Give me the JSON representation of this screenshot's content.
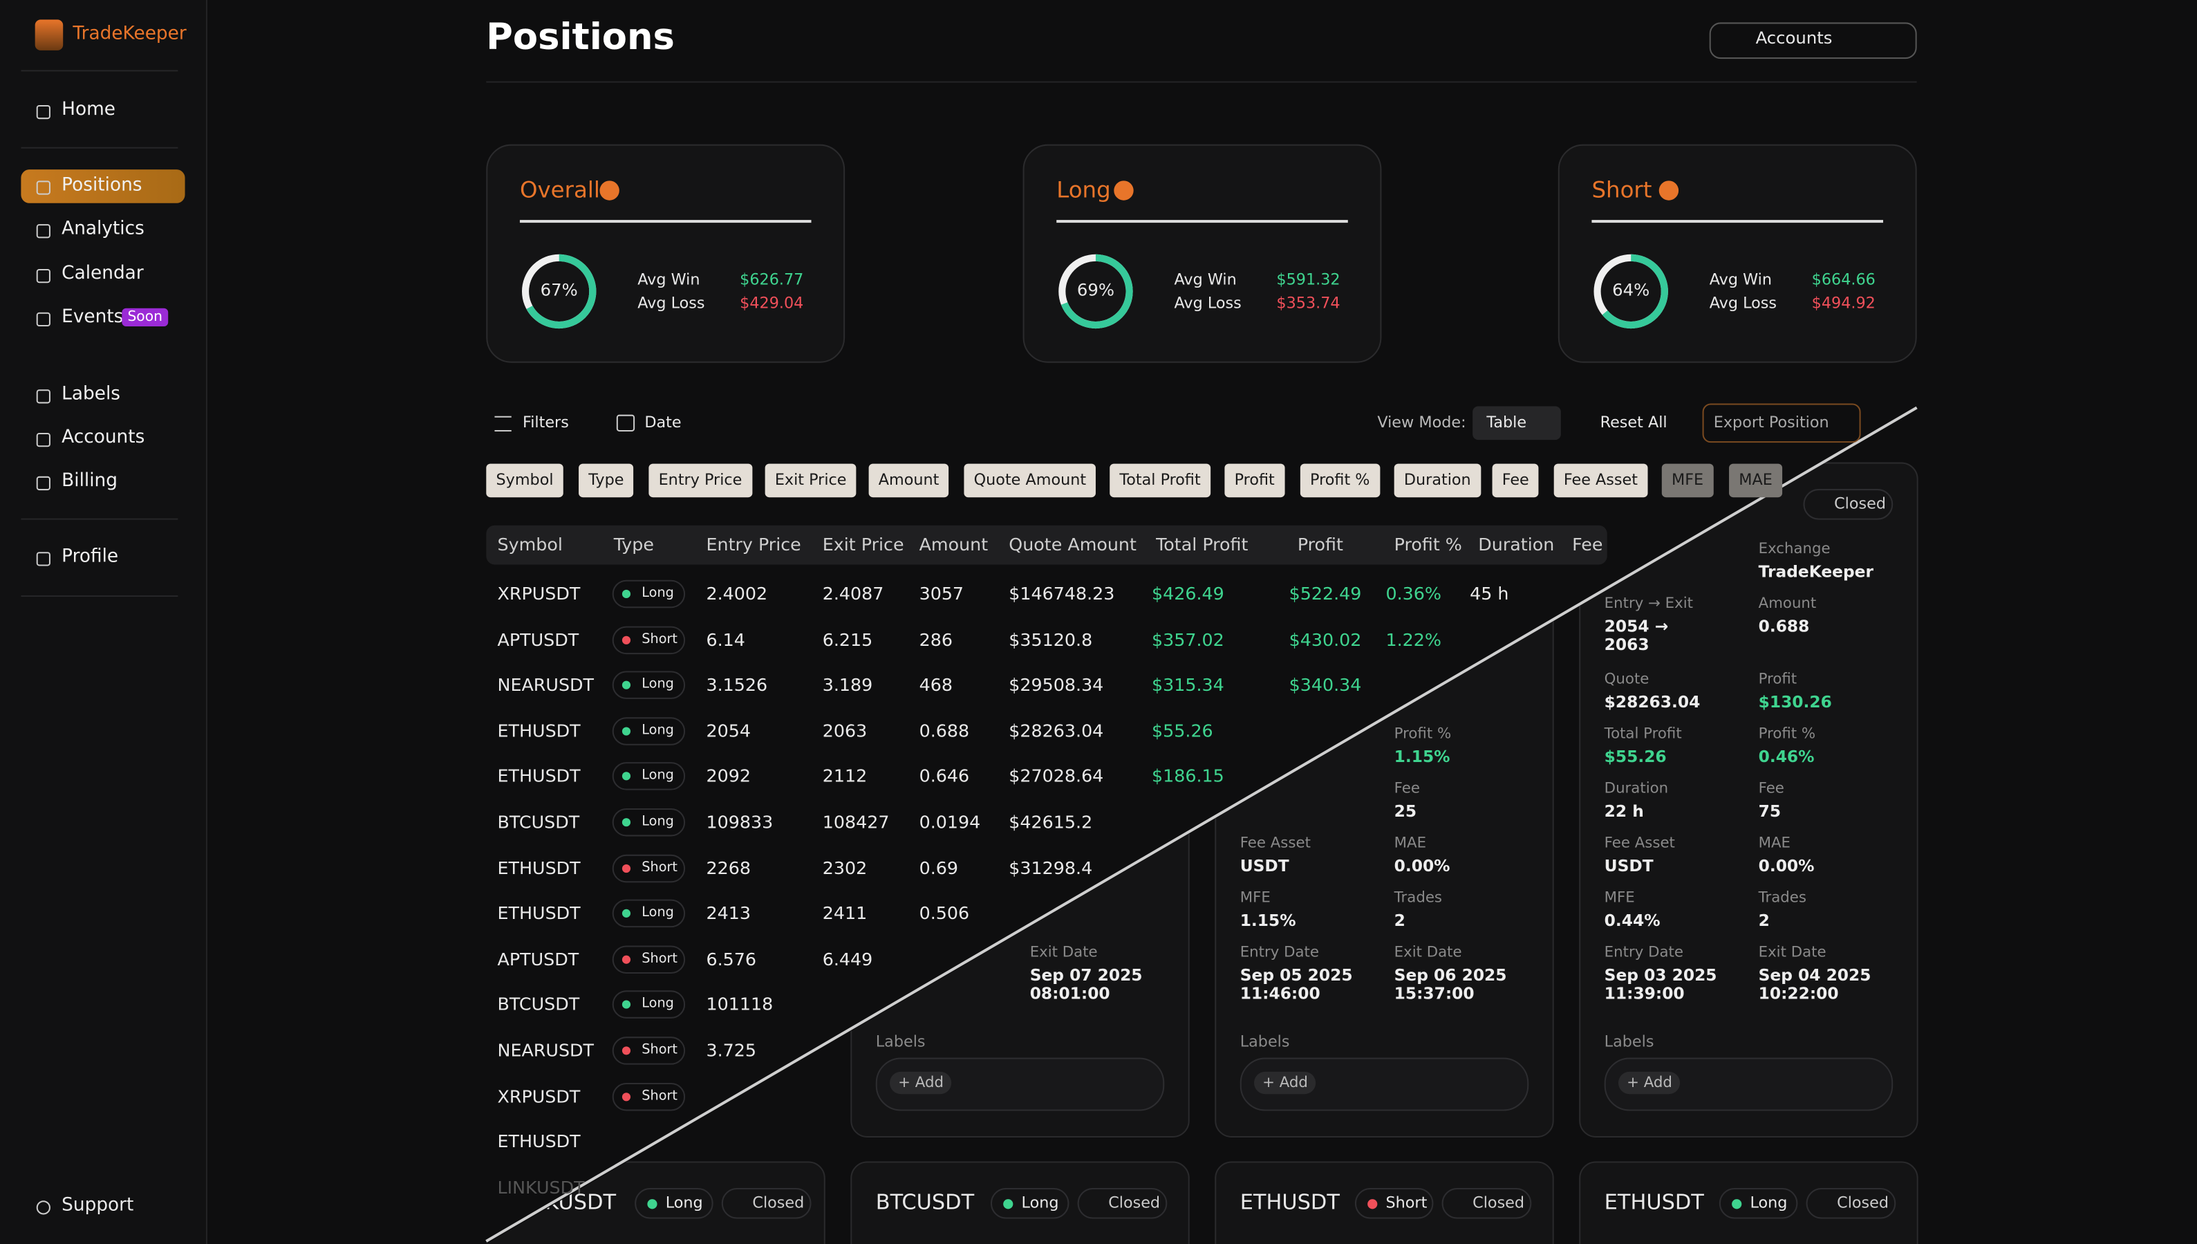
{
  "sidebar": {
    "brand": "TradeKeeper",
    "nav": [
      "Home",
      "Positions",
      "Analytics",
      "Calendar",
      "Events",
      "Labels",
      "Accounts",
      "Billing",
      "Profile"
    ],
    "soon": "Soon",
    "support": "Support"
  },
  "header": {
    "title": "Positions",
    "accounts": "Accounts"
  },
  "stats": [
    {
      "title": "Overall",
      "ratio": {
        "value": 67,
        "label": "67%"
      },
      "win_label": "Avg Win",
      "win": "$626.77",
      "loss_label": "Avg Loss",
      "loss": "$429.04"
    },
    {
      "title": "Long",
      "ratio": {
        "value": 69,
        "label": "69%"
      },
      "win_label": "Avg Win",
      "win": "$591.32",
      "loss_label": "Avg Loss",
      "loss": "$353.74"
    },
    {
      "title": "Short",
      "ratio": {
        "value": 64,
        "label": "64%"
      },
      "win_label": "Avg Win",
      "win": "$664.66",
      "loss_label": "Avg Loss",
      "loss": "$494.92"
    }
  ],
  "toolbar": {
    "filters": "Filters",
    "date": "Date",
    "view_mode": "View Mode:",
    "view": "Table",
    "reset": "Reset All",
    "export": "Export Position"
  },
  "chips": [
    "Symbol",
    "Type",
    "Entry Price",
    "Exit Price",
    "Amount",
    "Quote Amount",
    "Total Profit",
    "Profit",
    "Profit %",
    "Duration",
    "Fee",
    "Fee Asset",
    "MFE",
    "MAE"
  ],
  "table": {
    "headers": [
      "Symbol",
      "Type",
      "Entry Price",
      "Exit Price",
      "Amount",
      "Quote Amount",
      "Total Profit",
      "Profit",
      "Profit %",
      "Duration",
      "Fee"
    ],
    "rows": [
      [
        "XRPUSDT",
        "Long",
        "2.4002",
        "2.4087",
        "3057",
        "$146748.23",
        "$426.49",
        "$522.49",
        "0.36%",
        "45 h"
      ],
      [
        "APTUSDT",
        "Short",
        "6.14",
        "6.215",
        "286",
        "$35120.8",
        "$357.02",
        "$430.02",
        "1.22%"
      ],
      [
        "NEARUSDT",
        "Long",
        "3.1526",
        "3.189",
        "468",
        "$29508.34",
        "$315.34",
        "$340.34"
      ],
      [
        "ETHUSDT",
        "Long",
        "2054",
        "2063",
        "0.688",
        "$28263.04",
        "$55.26"
      ],
      [
        "ETHUSDT",
        "Long",
        "2092",
        "2112",
        "0.646",
        "$27028.64",
        "$186.15"
      ],
      [
        "BTCUSDT",
        "Long",
        "109833",
        "108427",
        "0.0194",
        "$42615.2"
      ],
      [
        "ETHUSDT",
        "Short",
        "2268",
        "2302",
        "0.69",
        "$31298.4"
      ],
      [
        "ETHUSDT",
        "Long",
        "2413",
        "2411",
        "0.506"
      ],
      [
        "APTUSDT",
        "Short",
        "6.576",
        "6.449"
      ],
      [
        "BTCUSDT",
        "Long",
        "101118"
      ],
      [
        "NEARUSDT",
        "Short",
        "3.725"
      ],
      [
        "XRPUSDT",
        "Short"
      ],
      [
        "ETHUSDT"
      ],
      [
        "LINKUSDT"
      ]
    ]
  },
  "cards": [
    {
      "labels": "Labels",
      "add": "+ Add",
      "grid": [
        [
          null,
          null
        ],
        [
          null,
          null
        ],
        [
          null,
          null
        ],
        [
          null,
          null
        ],
        [
          null,
          null
        ],
        [
          null,
          null
        ],
        [
          null,
          null
        ],
        [
          null,
          {
            "label": "Exit Date",
            "value": "Sep 07 2025",
            "value2": "08:01:00"
          }
        ]
      ]
    },
    {
      "labels": "Labels",
      "add": "+ Add",
      "grid": [
        [
          null,
          null
        ],
        [
          null,
          null
        ],
        [
          null,
          null
        ],
        [
          null,
          {
            "label": "Profit %",
            "value": "1.15%"
          }
        ],
        [
          null,
          {
            "label": "Fee",
            "value": "25"
          }
        ],
        [
          {
            "label": "Fee Asset",
            "value": "USDT"
          },
          {
            "label": "MAE",
            "value": "0.00%"
          }
        ],
        [
          {
            "label": "MFE",
            "value": "1.15%"
          },
          {
            "label": "Trades",
            "value": "2"
          }
        ],
        [
          {
            "label": "Entry Date",
            "value": "Sep 05 2025",
            "value2": "11:46:00"
          },
          {
            "label": "Exit Date",
            "value": "Sep 06 2025",
            "value2": "15:37:00"
          }
        ]
      ]
    },
    {
      "status": "Closed",
      "labels": "Labels",
      "add": "+ Add",
      "grid": [
        [
          null,
          {
            "label": "Exchange",
            "value": "TradeKeeper"
          }
        ],
        [
          {
            "label": "Entry → Exit",
            "value": "2054 →",
            "value2": "2063"
          },
          {
            "label": "Amount",
            "value": "0.688"
          }
        ],
        [
          {
            "label": "Quote",
            "value": "$28263.04"
          },
          {
            "label": "Profit",
            "value": "$130.26"
          }
        ],
        [
          {
            "label": "Total Profit",
            "value": "$55.26"
          },
          {
            "label": "Profit %",
            "value": "0.46%"
          }
        ],
        [
          {
            "label": "Duration",
            "value": "22 h"
          },
          {
            "label": "Fee",
            "value": "75"
          }
        ],
        [
          {
            "label": "Fee Asset",
            "value": "USDT"
          },
          {
            "label": "MAE",
            "value": "0.00%"
          }
        ],
        [
          {
            "label": "MFE",
            "value": "0.44%"
          },
          {
            "label": "Trades",
            "value": "2"
          }
        ],
        [
          {
            "label": "Entry Date",
            "value": "Sep 03 2025",
            "value2": "11:39:00"
          },
          {
            "label": "Exit Date",
            "value": "Sep 04 2025",
            "value2": "10:22:00"
          }
        ]
      ]
    }
  ],
  "bottom_cards": [
    {
      "symbol": "LINKUSDT",
      "type": "Long",
      "status": "Closed"
    },
    {
      "symbol": "BTCUSDT",
      "type": "Long",
      "status": "Closed"
    },
    {
      "symbol": "ETHUSDT",
      "type": "Short",
      "status": "Closed"
    },
    {
      "symbol": "ETHUSDT",
      "type": "Long",
      "status": "Closed"
    }
  ]
}
